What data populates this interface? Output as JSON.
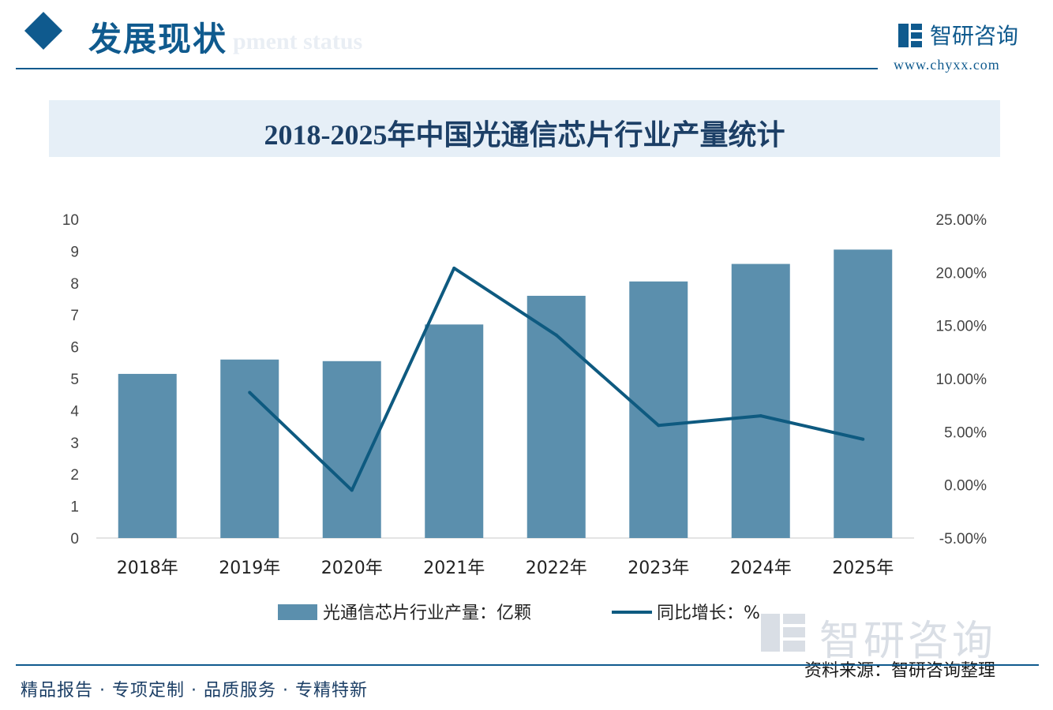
{
  "header": {
    "title": "发展现状",
    "subtitle_watermark": "pment status",
    "brand_name": "智研咨询",
    "brand_url": "www.chyxx.com"
  },
  "chart_data": {
    "type": "bar",
    "title": "2018-2025年中国光通信芯片行业产量统计",
    "categories": [
      "2018年",
      "2019年",
      "2020年",
      "2021年",
      "2022年",
      "2023年",
      "2024年",
      "2025年"
    ],
    "series": [
      {
        "name": "光通信芯片行业产量：亿颗",
        "type": "bar",
        "axis": "left",
        "color": "#5b8fad",
        "values": [
          5.15,
          5.6,
          5.55,
          6.7,
          7.6,
          8.05,
          8.6,
          9.05
        ]
      },
      {
        "name": "同比增长：%",
        "type": "line",
        "axis": "right",
        "color": "#0e5a80",
        "values": [
          null,
          8.7,
          -0.5,
          20.4,
          14.1,
          5.6,
          6.5,
          4.3
        ]
      }
    ],
    "y_left": {
      "min": 0,
      "max": 10,
      "ticks": [
        "0",
        "1",
        "2",
        "3",
        "4",
        "5",
        "6",
        "7",
        "8",
        "9",
        "10"
      ]
    },
    "y_right": {
      "min": -5,
      "max": 25,
      "ticks": [
        "-5.00%",
        "0.00%",
        "5.00%",
        "10.00%",
        "15.00%",
        "20.00%",
        "25.00%"
      ]
    },
    "legend_position": "bottom"
  },
  "footer": {
    "tagline": "精品报告 · 专项定制 · 品质服务 · 专精特新",
    "source": "资料来源：智研咨询整理",
    "watermark": "智研咨询"
  }
}
